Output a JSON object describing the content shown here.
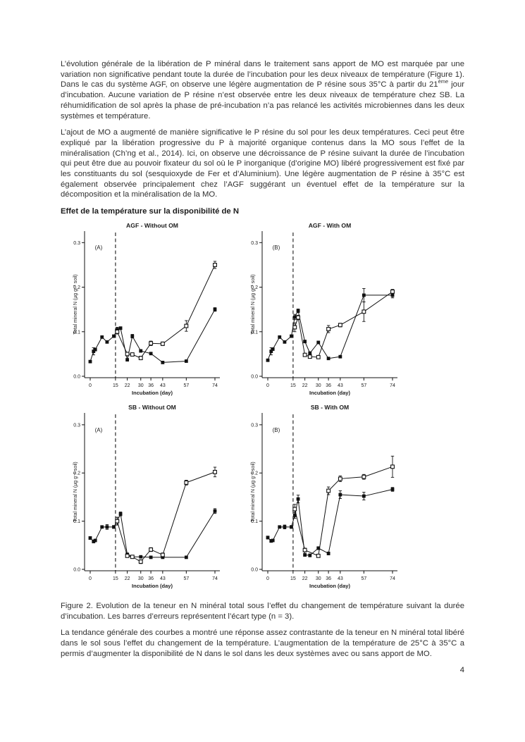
{
  "page": {
    "number": "4"
  },
  "body": {
    "p1_before": "L’évolution générale de la libération de P minéral dans le traitement sans apport de MO est marquée par une variation non significative pendant toute la durée de l’incubation pour les deux niveaux de température (Figure 1). Dans le cas du système AGF, on observe une légère augmentation de P résine sous 35°C à partir du 21",
    "p1_sup": "ème",
    "p1_after": " jour d’incubation. Aucune variation de P résine n’est observée entre les deux niveaux de température chez SB. La réhumidification de sol après la phase de pré-incubation n’a pas relancé les activités microbiennes dans les deux systèmes et température.",
    "p2": "L’ajout de MO a augmenté de manière significative le P résine du sol pour les deux températures. Ceci peut être expliqué par la libération progressive du P à majorité organique contenus dans la MO sous l’effet de la minéralisation (Ch’ng et al., 2014). Ici, on observe une décroissance de P résine suivant la durée de l’incubation qui peut être due au pouvoir fixateur du sol où le P inorganique (d’origine MO) libéré progressivement est fixé par les constituants du sol (sesquioxyde de Fer et d’Aluminium). Une légère augmentation de P résine à 35°C est également observée principalement chez l’AGF suggérant un éventuel effet de la température sur la décomposition et la minéralisation de la MO.",
    "heading": "Effet de la température sur la disponibilité de N",
    "caption": "Figure 2. Evolution de la teneur en N minéral total sous l’effet du changement de température suivant la durée d’incubation. Les barres d’erreurs représentent l’écart type (n = 3).",
    "p3": "La tendance générale des courbes a montré une réponse assez contrastante de la teneur en N minéral total libéré dans le sol sous l’effet du changement de la température. L’augmentation de la température de 25°C à 35°C a permis d’augmenter la disponibilité de N dans le sol dans les deux systèmes avec ou sans apport de MO."
  },
  "chart_style": {
    "line_color": "#111111",
    "dashed_line_color": "#4a4a4a",
    "open_marker_fill": "#ffffff"
  },
  "chart_data": [
    {
      "type": "line",
      "title": "AGF - Without OM",
      "panel_label": "(A)",
      "xlabel": "Incubation (day)",
      "ylabel": "Total mineral N (µg g⁻¹ soil)",
      "ylim": [
        0,
        0.31
      ],
      "yticks": [
        0,
        0.1,
        0.2,
        0.3
      ],
      "xticks": [
        0,
        15,
        22,
        30,
        36,
        43,
        57,
        74
      ],
      "dashed_vline_x": 15,
      "grid": false,
      "series": [
        {
          "name": "filled-square",
          "marker": "filled-square",
          "x": [
            0,
            2,
            3,
            7,
            10,
            14,
            16,
            18,
            22,
            25,
            30,
            36,
            43,
            57,
            74
          ],
          "y": [
            0.033,
            0.056,
            0.06,
            0.088,
            0.077,
            0.09,
            0.105,
            0.108,
            0.037,
            0.09,
            0.057,
            0.051,
            0.031,
            0.034,
            0.15
          ],
          "err": [
            0.002,
            0.008,
            0.003,
            0.002,
            0.002,
            0.003,
            0.005,
            0.003,
            0.002,
            0.004,
            0.003,
            0.002,
            0.002,
            0.002,
            0.004
          ]
        },
        {
          "name": "open-square",
          "marker": "open-square",
          "x": [
            16,
            22,
            25,
            30,
            36,
            43,
            57,
            74
          ],
          "y": [
            0.1,
            0.05,
            0.049,
            0.041,
            0.074,
            0.073,
            0.113,
            0.25
          ],
          "err": [
            0.005,
            0.004,
            0.003,
            0.004,
            0.005,
            0.004,
            0.012,
            0.008
          ]
        }
      ]
    },
    {
      "type": "line",
      "title": "AGF - With OM",
      "panel_label": "(B)",
      "xlabel": "Incubation (day)",
      "ylabel": "Total mineral N (µg g⁻¹ soil)",
      "ylim": [
        0,
        0.31
      ],
      "yticks": [
        0,
        0.1,
        0.2,
        0.3
      ],
      "xticks": [
        0,
        15,
        22,
        30,
        36,
        43,
        57,
        74
      ],
      "dashed_vline_x": 15,
      "grid": false,
      "series": [
        {
          "name": "filled-square",
          "marker": "filled-square",
          "x": [
            0,
            2,
            3,
            7,
            10,
            14,
            16,
            18,
            22,
            25,
            30,
            36,
            43,
            57,
            74
          ],
          "y": [
            0.036,
            0.056,
            0.061,
            0.088,
            0.077,
            0.09,
            0.133,
            0.147,
            0.078,
            0.052,
            0.076,
            0.04,
            0.044,
            0.182,
            0.182
          ],
          "err": [
            0.002,
            0.008,
            0.003,
            0.002,
            0.002,
            0.003,
            0.006,
            0.004,
            0.003,
            0.003,
            0.003,
            0.002,
            0.002,
            0.015,
            0.006
          ]
        },
        {
          "name": "open-square",
          "marker": "open-square",
          "x": [
            16,
            18,
            22,
            25,
            30,
            36,
            43,
            57,
            74
          ],
          "y": [
            0.11,
            0.132,
            0.048,
            0.044,
            0.043,
            0.106,
            0.115,
            0.145,
            0.19
          ],
          "err": [
            0.01,
            0.005,
            0.003,
            0.003,
            0.003,
            0.008,
            0.004,
            0.022,
            0.005
          ]
        }
      ]
    },
    {
      "type": "line",
      "title": "SB - Without OM",
      "panel_label": "(A)",
      "xlabel": "Incubation (day)",
      "ylabel": "Total mineral N (µg g⁻¹ soil)",
      "ylim": [
        0,
        0.31
      ],
      "yticks": [
        0,
        0.1,
        0.2,
        0.3
      ],
      "xticks": [
        0,
        15,
        22,
        30,
        36,
        43,
        57,
        74
      ],
      "dashed_vline_x": 15,
      "grid": false,
      "series": [
        {
          "name": "filled-square",
          "marker": "filled-square",
          "x": [
            0,
            2,
            3,
            7,
            10,
            14,
            16,
            18,
            22,
            25,
            30,
            36,
            43,
            57,
            74
          ],
          "y": [
            0.065,
            0.058,
            0.06,
            0.088,
            0.088,
            0.088,
            0.1,
            0.115,
            0.031,
            0.026,
            0.026,
            0.025,
            0.025,
            0.025,
            0.121
          ],
          "err": [
            0.003,
            0.003,
            0.002,
            0.002,
            0.005,
            0.003,
            0.008,
            0.004,
            0.003,
            0.002,
            0.002,
            0.002,
            0.002,
            0.002,
            0.005
          ]
        },
        {
          "name": "open-square",
          "marker": "open-square",
          "x": [
            16,
            22,
            25,
            30,
            36,
            43,
            57,
            74
          ],
          "y": [
            0.1,
            0.028,
            0.026,
            0.016,
            0.041,
            0.03,
            0.18,
            0.202
          ],
          "err": [
            0.008,
            0.003,
            0.002,
            0.004,
            0.004,
            0.004,
            0.005,
            0.01
          ]
        }
      ]
    },
    {
      "type": "line",
      "title": "SB - With OM",
      "panel_label": "(B)",
      "xlabel": "Incubation (day)",
      "ylabel": "Total mineral N (µg g⁻¹ soil)",
      "ylim": [
        0,
        0.31
      ],
      "yticks": [
        0,
        0.1,
        0.2,
        0.3
      ],
      "xticks": [
        0,
        15,
        22,
        30,
        36,
        43,
        57,
        74
      ],
      "dashed_vline_x": 15,
      "grid": false,
      "series": [
        {
          "name": "filled-square",
          "marker": "filled-square",
          "x": [
            0,
            2,
            3,
            7,
            10,
            14,
            16,
            18,
            22,
            25,
            30,
            36,
            43,
            57,
            74
          ],
          "y": [
            0.066,
            0.059,
            0.06,
            0.088,
            0.088,
            0.088,
            0.112,
            0.146,
            0.03,
            0.029,
            0.044,
            0.033,
            0.155,
            0.152,
            0.166
          ],
          "err": [
            0.003,
            0.003,
            0.002,
            0.002,
            0.004,
            0.003,
            0.006,
            0.008,
            0.003,
            0.003,
            0.003,
            0.003,
            0.008,
            0.008,
            0.004
          ]
        },
        {
          "name": "open-square",
          "marker": "open-square",
          "x": [
            16,
            22,
            30,
            36,
            43,
            57,
            74
          ],
          "y": [
            0.125,
            0.04,
            0.028,
            0.163,
            0.188,
            0.192,
            0.213
          ],
          "err": [
            0.01,
            0.004,
            0.003,
            0.008,
            0.006,
            0.005,
            0.022
          ]
        }
      ]
    }
  ]
}
